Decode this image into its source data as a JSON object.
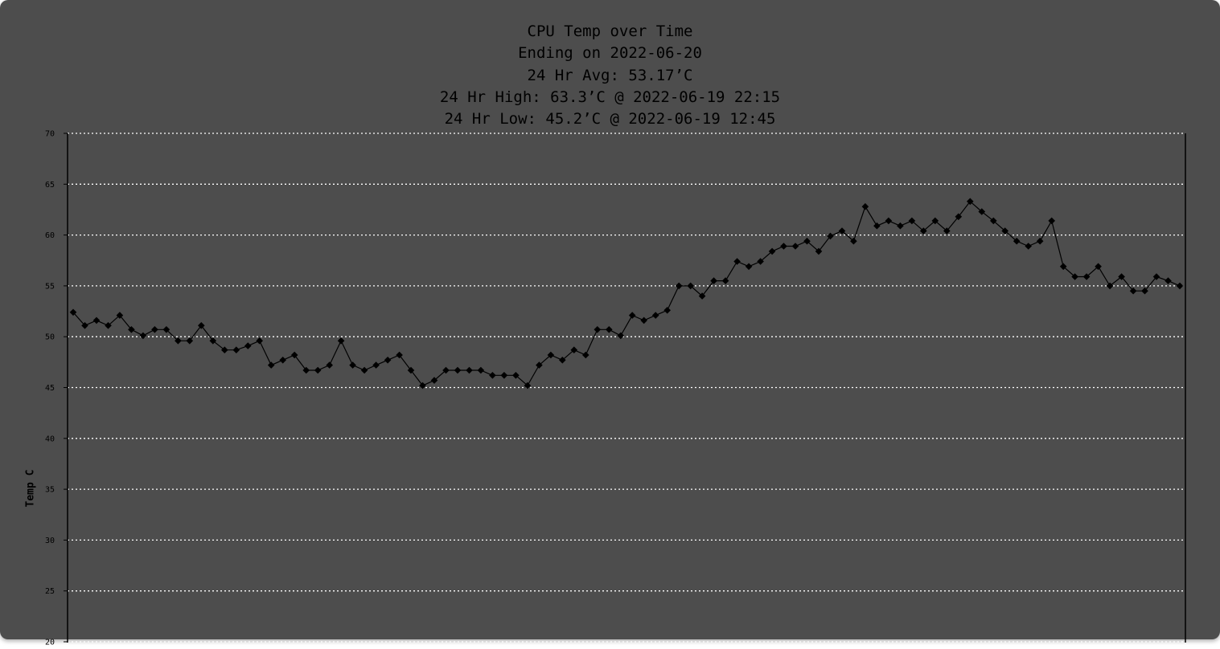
{
  "chart_data": {
    "type": "line",
    "title_lines": [
      "CPU Temp over Time",
      "Ending on 2022-06-20",
      "24 Hr Avg: 53.17’C",
      "24 Hr High: 63.3’C @ 2022-06-19 22:15",
      "24 Hr Low: 45.2’C @ 2022-06-19 12:45"
    ],
    "ylabel": "Temp C",
    "xlabel": "",
    "ylim": [
      20,
      70
    ],
    "yticks": [
      70,
      65,
      60,
      55,
      50,
      45,
      40,
      35,
      30,
      25,
      20
    ],
    "grid": "horizontal dotted",
    "marker": "diamond",
    "colors": {
      "background": "#4d4d4d",
      "line": "#000000",
      "grid": "#ffffff"
    },
    "series": [
      {
        "values": [
          52.4,
          51.1,
          51.6,
          51.1,
          52.1,
          50.7,
          50.1,
          50.7,
          50.7,
          49.6,
          49.6,
          51.1,
          49.6,
          48.7,
          48.7,
          49.1,
          49.6,
          47.2,
          47.7,
          48.2,
          46.7,
          46.7,
          47.2,
          49.6,
          47.2,
          46.7,
          47.2,
          47.7,
          48.2,
          46.7,
          45.2,
          45.7,
          46.7,
          46.7,
          46.7,
          46.7,
          46.2,
          46.2,
          46.2,
          45.2,
          47.2,
          48.2,
          47.7,
          48.7,
          48.2,
          50.7,
          50.7,
          50.1,
          52.1,
          51.6,
          52.1,
          52.6,
          55.0,
          55.0,
          54.0,
          55.5,
          55.5,
          57.4,
          56.9,
          57.4,
          58.4,
          58.9,
          58.9,
          59.4,
          58.4,
          59.9,
          60.4,
          59.4,
          62.8,
          60.9,
          61.4,
          60.9,
          61.4,
          60.4,
          61.4,
          60.4,
          61.8,
          63.3,
          62.3,
          61.4,
          60.4,
          59.4,
          58.9,
          59.4,
          61.4,
          56.9,
          55.9,
          55.9,
          56.9,
          55.0,
          55.9,
          54.5,
          54.5,
          55.9,
          55.5,
          55.0
        ]
      }
    ]
  }
}
